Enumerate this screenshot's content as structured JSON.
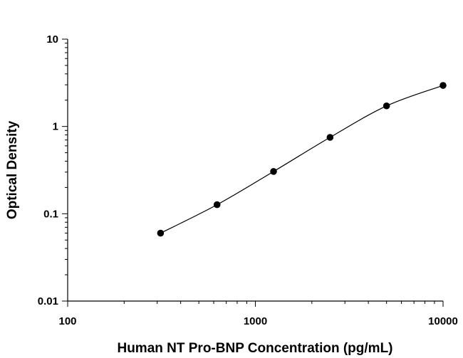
{
  "chart_data": {
    "type": "scatter",
    "xlabel": "Human NT Pro-BNP Concentration (pg/mL)",
    "ylabel": "Optical Density",
    "xscale": "log",
    "yscale": "log",
    "xlim": [
      100,
      10000
    ],
    "ylim": [
      0.01,
      10
    ],
    "x_ticks": [
      "100",
      "1000",
      "10000"
    ],
    "y_ticks": [
      "0.01",
      "0.1",
      "1",
      "10"
    ],
    "grid": false,
    "series": [
      {
        "x": [
          312.5,
          625,
          1250,
          2500,
          5000,
          10000
        ],
        "y": [
          0.06,
          0.127,
          0.305,
          0.75,
          1.72,
          2.95
        ],
        "fit_curve": true
      }
    ],
    "colors": {
      "marker": "#000000",
      "line": "#000000"
    }
  }
}
